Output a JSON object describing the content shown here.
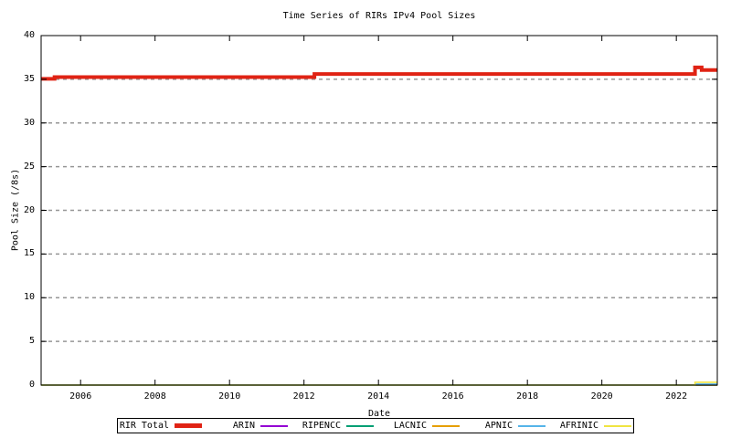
{
  "title": "Time Series of RIRs IPv4 Pool Sizes",
  "colors": {
    "grid": "#969696",
    "border": "#000000",
    "background": "#ffffff"
  },
  "chart_data": {
    "type": "line",
    "title": "Time Series of RIRs IPv4 Pool Sizes",
    "xlabel": "Date",
    "ylabel": "Pool Size (/8s)",
    "xlim": [
      2004.94,
      2023.1
    ],
    "ylim": [
      0,
      40
    ],
    "xticks": [
      2006,
      2008,
      2010,
      2012,
      2014,
      2016,
      2018,
      2020,
      2022
    ],
    "yticks": [
      0,
      5,
      10,
      15,
      20,
      25,
      30,
      35,
      40
    ],
    "grid": "horizontal-dashed",
    "legend_position": "bottom",
    "series": [
      {
        "name": "RIR Total",
        "color": "#e02314",
        "width": 4,
        "points": [
          [
            2004.94,
            35.05
          ],
          [
            2005.3,
            35.05
          ],
          [
            2005.3,
            35.25
          ],
          [
            2012.28,
            35.25
          ],
          [
            2012.28,
            35.6
          ],
          [
            2022.5,
            35.6
          ],
          [
            2022.5,
            36.35
          ],
          [
            2022.68,
            36.35
          ],
          [
            2022.68,
            36.05
          ],
          [
            2023.1,
            36.05
          ]
        ]
      },
      {
        "name": "ARIN",
        "color": "#9400d3",
        "width": 1.6,
        "points": [
          [
            2004.94,
            0
          ],
          [
            2023.1,
            0
          ]
        ]
      },
      {
        "name": "RIPENCC",
        "color": "#009e73",
        "width": 1.6,
        "points": [
          [
            2004.94,
            0
          ],
          [
            2023.1,
            0
          ]
        ]
      },
      {
        "name": "LACNIC",
        "color": "#e69f00",
        "width": 1.6,
        "points": [
          [
            2004.94,
            0
          ],
          [
            2023.1,
            0
          ]
        ]
      },
      {
        "name": "APNIC",
        "color": "#56b4e9",
        "width": 1.6,
        "points": [
          [
            2004.94,
            0
          ],
          [
            2022.5,
            0
          ],
          [
            2022.5,
            0.12
          ],
          [
            2023.1,
            0.12
          ]
        ]
      },
      {
        "name": "AFRINIC",
        "color": "#f0e442",
        "width": 1.6,
        "points": [
          [
            2004.94,
            0
          ],
          [
            2022.5,
            0
          ],
          [
            2022.5,
            0.32
          ],
          [
            2023.1,
            0.32
          ]
        ]
      }
    ]
  }
}
